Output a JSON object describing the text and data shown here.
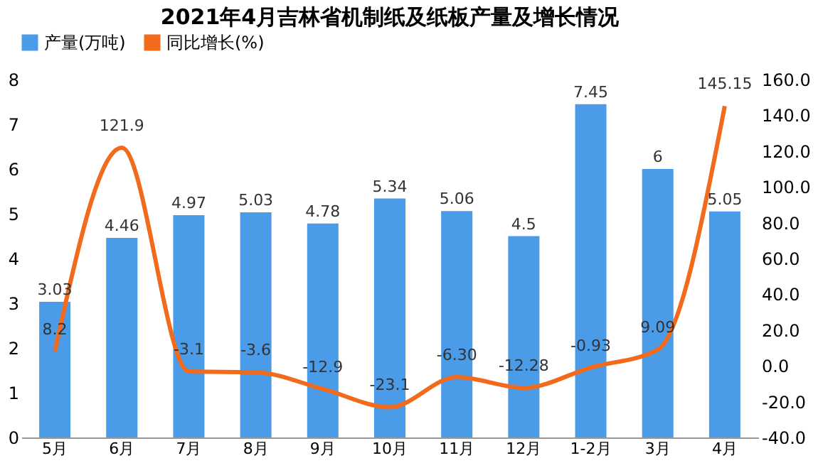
{
  "chart_data": {
    "type": "bar",
    "title": "2021年4月吉林省机制纸及纸板产量及增长情况",
    "categories": [
      "5月",
      "6月",
      "7月",
      "8月",
      "9月",
      "10月",
      "11月",
      "12月",
      "1-2月",
      "3月",
      "4月"
    ],
    "series": [
      {
        "name": "产量(万吨)",
        "color": "#4a9be8",
        "values": [
          3.03,
          4.46,
          4.97,
          5.03,
          4.78,
          5.34,
          5.06,
          4.5,
          7.45,
          6,
          5.05
        ],
        "value_labels": [
          "3.03",
          "4.46",
          "4.97",
          "5.03",
          "4.78",
          "5.34",
          "5.06",
          "4.5",
          "7.45",
          "6",
          "5.05"
        ]
      },
      {
        "name": "同比增长(%)",
        "type": "line",
        "axis": "y2",
        "color": "#f26b1d",
        "values": [
          8.2,
          121.9,
          -3.1,
          -3.6,
          -12.9,
          -23.1,
          -6.3,
          -12.28,
          -0.93,
          9.09,
          145.15
        ],
        "value_labels": [
          "8.2",
          "121.9",
          "-3.1",
          "-3.6",
          "-12.9",
          "-23.1",
          "-6.30",
          "-12.28",
          "-0.93",
          "9.09",
          "145.15"
        ]
      }
    ],
    "ylim": [
      0,
      8
    ],
    "yticks": [
      0,
      1,
      2,
      3,
      4,
      5,
      6,
      7,
      8
    ],
    "y2lim": [
      -40,
      160
    ],
    "y2ticks": [
      {
        "value": -40,
        "label": "-40.0"
      },
      {
        "value": -20,
        "label": "-20.0"
      },
      {
        "value": 0,
        "label": "0.0"
      },
      {
        "value": 20,
        "label": "20.0"
      },
      {
        "value": 40,
        "label": "40.0"
      },
      {
        "value": 60,
        "label": "60.0"
      },
      {
        "value": 80,
        "label": "80.0"
      },
      {
        "value": 100,
        "label": "100.0"
      },
      {
        "value": 120,
        "label": "120.0"
      },
      {
        "value": 140,
        "label": "140.0"
      },
      {
        "value": 160,
        "label": "160.0"
      }
    ],
    "legend": "top",
    "grid": false,
    "marker": "none",
    "line_style": "solid"
  }
}
